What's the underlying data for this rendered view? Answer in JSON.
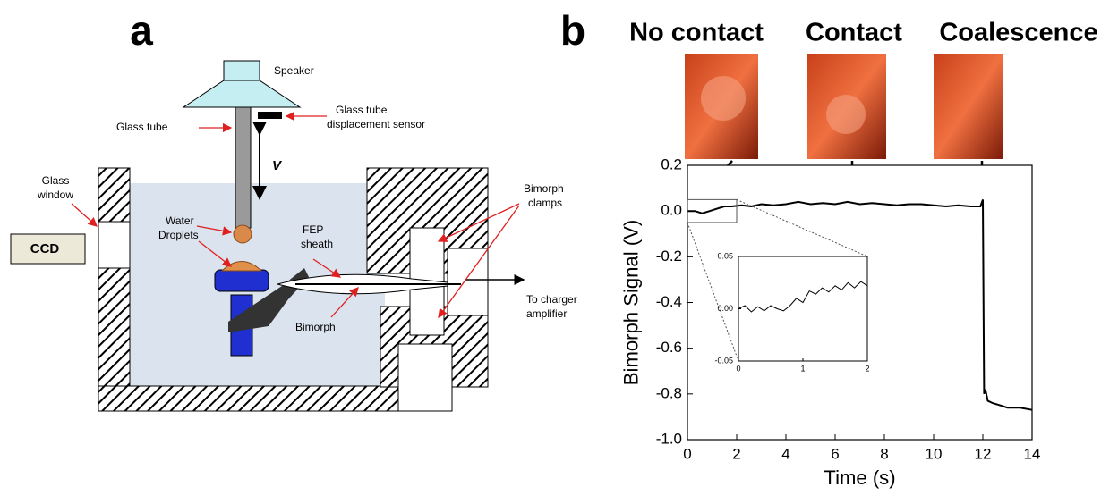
{
  "panel_a": {
    "label": "a",
    "speaker": "Speaker",
    "glass_tube": "Glass tube",
    "sensor": [
      "Glass tube",
      "displacement sensor"
    ],
    "velocity": "V",
    "glass_window": [
      "Glass",
      "window"
    ],
    "ccd": "CCD",
    "droplets": [
      "Water",
      "Droplets"
    ],
    "sheath": [
      "FEP",
      "sheath"
    ],
    "clamps": [
      "Bimorph",
      "clamps"
    ],
    "bimorph": "Bimorph",
    "amplifier": [
      "To charger",
      "amplifier"
    ]
  },
  "chart_data": [
    {
      "type": "line",
      "panel_label": "b",
      "xlabel": "Time (s)",
      "ylabel": "Bimorph Signal (V)",
      "annotations": [
        "No contact",
        "Contact",
        "Coalescence"
      ],
      "color": "#000000",
      "x": [
        0,
        0.3,
        0.6,
        0.9,
        1.2,
        1.5,
        1.8,
        2.2,
        2.6,
        3,
        3.5,
        4,
        4.5,
        5,
        5.5,
        6,
        6.5,
        7,
        7.5,
        8,
        8.5,
        9,
        9.5,
        10,
        10.5,
        11,
        11.5,
        11.9,
        12,
        12.05,
        12.1,
        12.2,
        12.4,
        12.7,
        13,
        13.5,
        14
      ],
      "values": [
        0.0,
        0.0,
        -0.01,
        0.0,
        0.01,
        0.02,
        0.02,
        0.025,
        0.02,
        0.03,
        0.025,
        0.03,
        0.04,
        0.03,
        0.035,
        0.03,
        0.04,
        0.03,
        0.035,
        0.03,
        0.025,
        0.03,
        0.03,
        0.025,
        0.02,
        0.025,
        0.02,
        0.02,
        0.05,
        -0.8,
        -0.78,
        -0.83,
        -0.84,
        -0.85,
        -0.86,
        -0.86,
        -0.87
      ],
      "xlim": [
        0,
        14
      ],
      "ylim": [
        -1,
        0.2
      ],
      "xticks": [
        0,
        2,
        4,
        6,
        8,
        10,
        12,
        14
      ],
      "yticks": [
        0.2,
        {
          "value": 0,
          "label": "0.0"
        },
        -0.2,
        -0.4,
        -0.6,
        -0.8,
        {
          "value": -1,
          "label": "-1.0"
        }
      ]
    },
    {
      "type": "line",
      "color": "#000000",
      "x": [
        0,
        0.1,
        0.2,
        0.3,
        0.4,
        0.5,
        0.6,
        0.7,
        0.8,
        0.9,
        1.0,
        1.1,
        1.2,
        1.3,
        1.4,
        1.5,
        1.6,
        1.7,
        1.8,
        1.9,
        2.0
      ],
      "values": [
        0.0,
        0.003,
        -0.003,
        0.002,
        -0.002,
        0.003,
        0.0,
        -0.002,
        0.003,
        0.01,
        0.006,
        0.017,
        0.014,
        0.02,
        0.016,
        0.022,
        0.018,
        0.025,
        0.02,
        0.026,
        0.022
      ],
      "xlim": [
        0,
        2
      ],
      "ylim": [
        -0.05,
        0.05
      ],
      "xticks": [
        0,
        1,
        2
      ],
      "yticks": [
        0.05,
        {
          "value": 0,
          "label": "0.00"
        },
        -0.05
      ]
    }
  ]
}
